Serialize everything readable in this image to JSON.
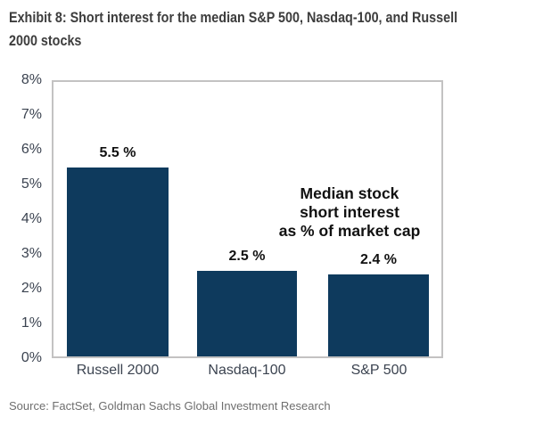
{
  "exhibit": {
    "title_line1": "Exhibit 8: Short interest for the median S&P 500, Nasdaq-100, and Russell",
    "title_line2": "2000 stocks",
    "source": "Source: FactSet, Goldman Sachs Global Investment Research"
  },
  "annotation": {
    "line1": "Median stock",
    "line2": "short interest",
    "line3": "as % of market cap"
  },
  "chart_data": {
    "type": "bar",
    "title": "Median stock short interest as % of market cap",
    "categories": [
      "Russell 2000",
      "Nasdaq-100",
      "S&P 500"
    ],
    "values": [
      5.5,
      2.5,
      2.4
    ],
    "value_labels": [
      "5.5 %",
      "2.5 %",
      "2.4 %"
    ],
    "xlabel": "",
    "ylabel": "",
    "ylim": [
      0,
      8
    ],
    "ytick_labels": [
      "8%",
      "7%",
      "6%",
      "5%",
      "4%",
      "3%",
      "2%",
      "1%",
      "0%"
    ],
    "grid": false,
    "legend": false,
    "colors": {
      "bar": "#0e3a5d",
      "plot_border": "#c3c2c2",
      "axis_label": "#3b4350",
      "data_label": "#111111",
      "title": "#3d3d3d",
      "source": "#6e6e6e"
    }
  }
}
